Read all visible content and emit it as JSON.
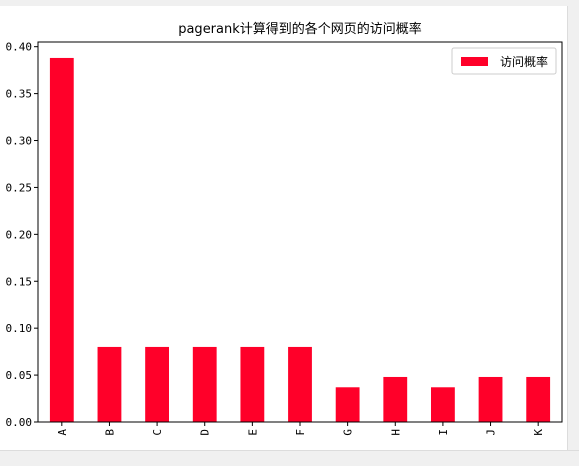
{
  "chart_data": {
    "type": "bar",
    "title": "pagerank计算得到的各个网页的访问概率",
    "categories": [
      "A",
      "B",
      "C",
      "D",
      "E",
      "F",
      "G",
      "H",
      "I",
      "J",
      "K"
    ],
    "series": [
      {
        "name": "访问概率",
        "values": [
          0.388,
          0.08,
          0.08,
          0.08,
          0.08,
          0.08,
          0.037,
          0.048,
          0.037,
          0.048,
          0.048
        ]
      }
    ],
    "yticks": [
      "0.00",
      "0.05",
      "0.10",
      "0.15",
      "0.20",
      "0.25",
      "0.30",
      "0.35",
      "0.40"
    ],
    "ylim": [
      0,
      0.405
    ],
    "bar_color": "#ff0029",
    "legend_position": "top-right",
    "grid": false
  }
}
